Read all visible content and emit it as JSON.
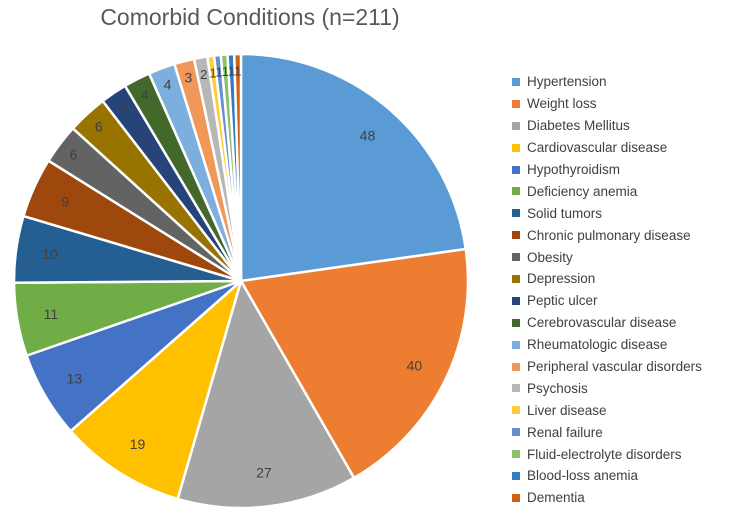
{
  "chart_data": {
    "type": "pie",
    "title": "Comorbid Conditions (n=211)",
    "categories": [
      "Hypertension",
      "Weight loss",
      "Diabetes Mellitus",
      "Cardiovascular disease",
      "Hypothyroidism",
      "Deficiency anemia",
      "Solid tumors",
      "Chronic pulmonary disease",
      "Obesity",
      "Depression",
      "Peptic ulcer",
      "Cerebrovascular disease",
      "Rheumatologic disease",
      "Peripheral vascular disorders",
      "Psychosis",
      "Liver disease",
      "Renal failure",
      "Fluid-electrolyte disorders",
      "Blood-loss anemia",
      "Dementia"
    ],
    "values": [
      48,
      40,
      27,
      19,
      13,
      11,
      10,
      9,
      6,
      6,
      4,
      4,
      4,
      3,
      2,
      1,
      1,
      1,
      1,
      1
    ],
    "data_labels": [
      "48",
      "40",
      "27",
      "19",
      "13",
      "11",
      "10",
      "9",
      "6",
      "6",
      "4",
      "4",
      "4",
      "3",
      "2",
      "1",
      "1",
      "1",
      "1",
      "1"
    ],
    "colors": [
      "#5B9BD5",
      "#ED7D31",
      "#A5A5A5",
      "#FFC000",
      "#4472C4",
      "#70AD47",
      "#255E91",
      "#9E480E",
      "#636363",
      "#997300",
      "#264478",
      "#43682B",
      "#7CAFDD",
      "#F1975A",
      "#B7B7B7",
      "#FFCD33",
      "#698ED0",
      "#8CC168",
      "#327DC2",
      "#D26012"
    ],
    "legend_position": "right",
    "start_angle_deg": 0,
    "direction": "clockwise"
  }
}
